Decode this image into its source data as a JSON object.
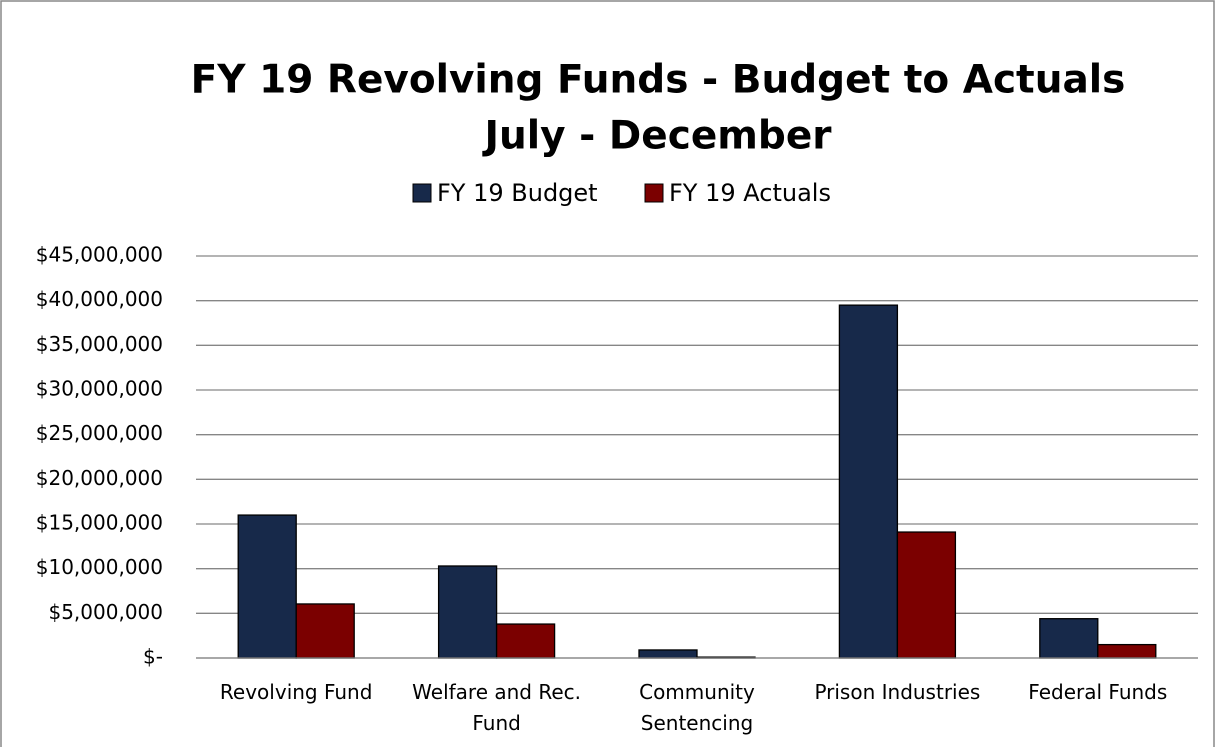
{
  "chart_data": {
    "type": "bar",
    "title": "FY 19 Revolving Funds - Budget to Actuals",
    "subtitle": "July - December",
    "categories": [
      "Revolving Fund",
      "Welfare and Rec. Fund",
      "Community Sentencing",
      "Prison Industries",
      "Federal Funds"
    ],
    "series": [
      {
        "name": "FY 19 Budget",
        "color": "#17294a",
        "values": [
          16000000,
          10300000,
          900000,
          39500000,
          4400000
        ]
      },
      {
        "name": "FY 19 Actuals",
        "color": "#7b0000",
        "values": [
          6050000,
          3800000,
          100000,
          14100000,
          1500000
        ]
      }
    ],
    "ylim": [
      0,
      45000000
    ],
    "yticks": [
      {
        "value": 0,
        "label": "$-"
      },
      {
        "value": 5000000,
        "label": "$5,000,000"
      },
      {
        "value": 10000000,
        "label": "$10,000,000"
      },
      {
        "value": 15000000,
        "label": "$15,000,000"
      },
      {
        "value": 20000000,
        "label": "$20,000,000"
      },
      {
        "value": 25000000,
        "label": "$25,000,000"
      },
      {
        "value": 30000000,
        "label": "$30,000,000"
      },
      {
        "value": 35000000,
        "label": "$35,000,000"
      },
      {
        "value": 40000000,
        "label": "$40,000,000"
      },
      {
        "value": 45000000,
        "label": "$45,000,000"
      }
    ],
    "grid": true,
    "legend": "top"
  }
}
